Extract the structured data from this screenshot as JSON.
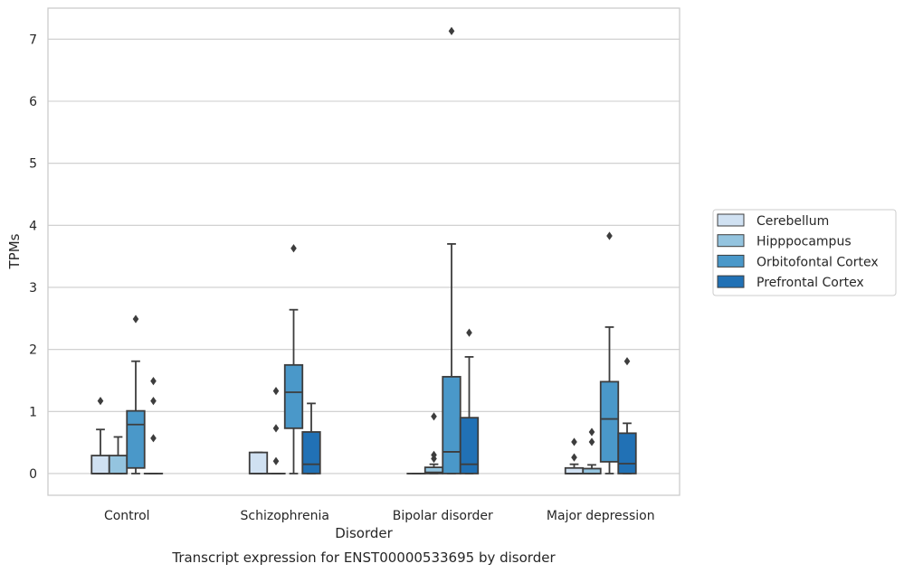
{
  "chart_data": {
    "type": "box",
    "title": "",
    "caption": "Transcript expression for ENST00000533695 by disorder",
    "xlabel": "Disorder",
    "ylabel": "TPMs",
    "ylim": [
      -0.35,
      7.5
    ],
    "yticks": [
      0,
      1,
      2,
      3,
      4,
      5,
      6,
      7
    ],
    "grid": "horizontal",
    "legend_position": "right",
    "categories": [
      "Control",
      "Schizophrenia",
      "Bipolar disorder",
      "Major depression"
    ],
    "series": [
      {
        "name": "Cerebellum",
        "color": "#d0e1f2",
        "boxes": [
          {
            "whislo": 0,
            "q1": 0,
            "med": 0,
            "q3": 0.29,
            "whishi": 0.71,
            "fliers": [
              1.17
            ]
          },
          {
            "whislo": 0,
            "q1": 0,
            "med": 0,
            "q3": 0.34,
            "whishi": 0.34,
            "fliers": []
          },
          {
            "whislo": 0,
            "q1": 0,
            "med": 0,
            "q3": 0,
            "whishi": 0,
            "fliers": []
          },
          {
            "whislo": 0,
            "q1": 0,
            "med": 0,
            "q3": 0.09,
            "whishi": 0.15,
            "fliers": [
              0.26,
              0.51
            ]
          }
        ]
      },
      {
        "name": "Hipppocampus",
        "color": "#94c4df",
        "boxes": [
          {
            "whislo": 0,
            "q1": 0,
            "med": 0,
            "q3": 0.29,
            "whishi": 0.59,
            "fliers": []
          },
          {
            "whislo": 0,
            "q1": 0,
            "med": 0,
            "q3": 0,
            "whishi": 0,
            "fliers": [
              0.2,
              0.73,
              1.33
            ]
          },
          {
            "whislo": 0,
            "q1": 0,
            "med": 0.02,
            "q3": 0.1,
            "whishi": 0.15,
            "fliers": [
              0.24,
              0.3,
              0.92
            ]
          },
          {
            "whislo": 0,
            "q1": 0,
            "med": 0,
            "q3": 0.08,
            "whishi": 0.14,
            "fliers": [
              0.51,
              0.67
            ]
          }
        ]
      },
      {
        "name": "Orbitofontal Cortex",
        "color": "#4a98c9",
        "boxes": [
          {
            "whislo": 0,
            "q1": 0.09,
            "med": 0.79,
            "q3": 1.01,
            "whishi": 1.81,
            "fliers": [
              2.49
            ]
          },
          {
            "whislo": 0,
            "q1": 0.73,
            "med": 1.31,
            "q3": 1.75,
            "whishi": 2.64,
            "fliers": [
              3.63
            ]
          },
          {
            "whislo": 0,
            "q1": 0,
            "med": 0.35,
            "q3": 1.56,
            "whishi": 3.7,
            "fliers": [
              7.13
            ]
          },
          {
            "whislo": 0,
            "q1": 0.19,
            "med": 0.88,
            "q3": 1.48,
            "whishi": 2.36,
            "fliers": [
              3.83
            ]
          }
        ]
      },
      {
        "name": "Prefrontal Cortex",
        "color": "#2171b5",
        "boxes": [
          {
            "whislo": 0,
            "q1": 0,
            "med": 0,
            "q3": 0,
            "whishi": 0,
            "fliers": [
              0.57,
              1.17,
              1.49
            ]
          },
          {
            "whislo": 0,
            "q1": 0,
            "med": 0.15,
            "q3": 0.67,
            "whishi": 1.13,
            "fliers": []
          },
          {
            "whislo": 0,
            "q1": 0,
            "med": 0.15,
            "q3": 0.9,
            "whishi": 1.88,
            "fliers": [
              2.27
            ]
          },
          {
            "whislo": 0,
            "q1": 0,
            "med": 0.16,
            "q3": 0.65,
            "whishi": 0.81,
            "fliers": [
              1.81
            ]
          }
        ]
      }
    ]
  }
}
